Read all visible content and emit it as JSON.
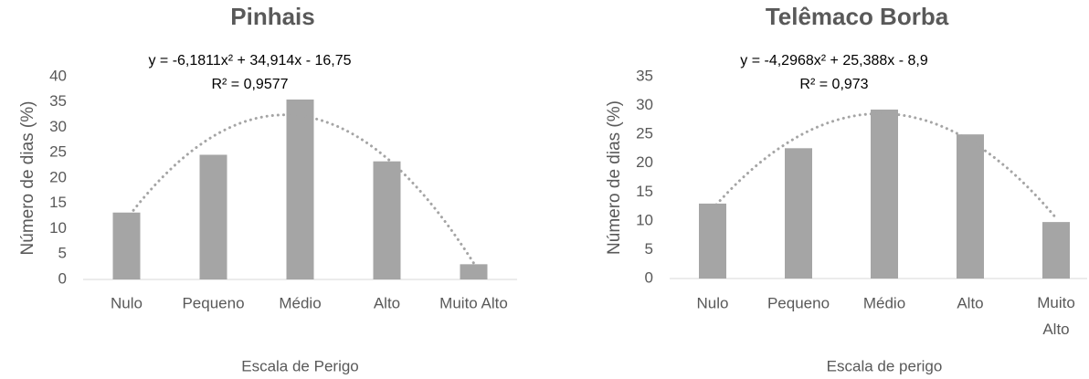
{
  "chart_data": [
    {
      "type": "bar",
      "title": "Pinhais",
      "equation": "y = -6,1811x² + 34,914x - 16,75",
      "r_squared": "R² = 0,9577",
      "x_label": "Escala de Perigo",
      "y_label": "Número de dias (%)",
      "categories": [
        "Nulo",
        "Pequeno",
        "Médio",
        "Alto",
        "Muito Alto"
      ],
      "values": [
        13.2,
        24.6,
        35.5,
        23.3,
        3.0
      ],
      "color": "#a5a5a5",
      "ylim": [
        0,
        40
      ],
      "yticks": [
        0,
        5,
        10,
        15,
        20,
        25,
        30,
        35,
        40
      ],
      "trendline": {
        "type": "polynomial",
        "order": 2,
        "color": "#a5a5a5"
      }
    },
    {
      "type": "bar",
      "title": "Telêmaco Borba",
      "equation": "y = -4,2968x² + 25,388x - 8,9",
      "r_squared": "R² = 0,973",
      "x_label": "Escala de perigo",
      "y_label": "Número de dias (%)",
      "categories": [
        "Nulo",
        "Pequeno",
        "Médio",
        "Alto",
        "Muito Alto"
      ],
      "values": [
        13.0,
        22.6,
        29.3,
        25.0,
        9.8
      ],
      "color": "#a5a5a5",
      "ylim": [
        0,
        35
      ],
      "yticks": [
        0,
        5,
        10,
        15,
        20,
        25,
        30,
        35
      ],
      "trendline": {
        "type": "polynomial",
        "order": 2,
        "color": "#a5a5a5"
      }
    }
  ]
}
